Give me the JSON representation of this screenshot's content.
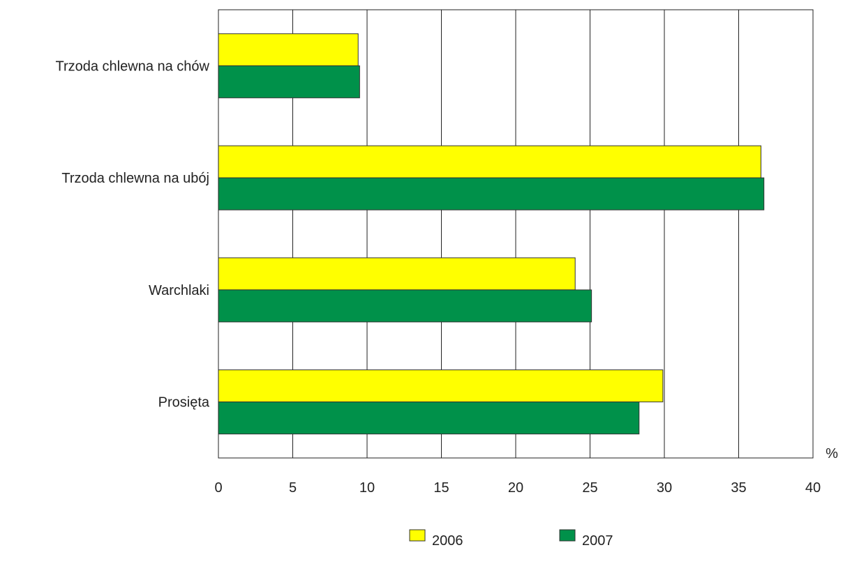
{
  "chart_data": {
    "type": "bar",
    "orientation": "horizontal",
    "categories": [
      "Trzoda chlewna na chów",
      "Trzoda chlewna na ubój",
      "Warchlaki",
      "Prosięta"
    ],
    "series": [
      {
        "name": "2006",
        "color": "#ffff00",
        "values": [
          9.4,
          36.5,
          24.0,
          29.9
        ]
      },
      {
        "name": "2007",
        "color": "#00914a",
        "values": [
          9.5,
          36.7,
          25.1,
          28.3
        ]
      }
    ],
    "xlim": [
      0,
      40
    ],
    "xticks": [
      "0",
      "5",
      "10",
      "15",
      "20",
      "25",
      "30",
      "35",
      "40"
    ],
    "xunit": "%",
    "grid": "vertical",
    "legend_position": "bottom"
  }
}
